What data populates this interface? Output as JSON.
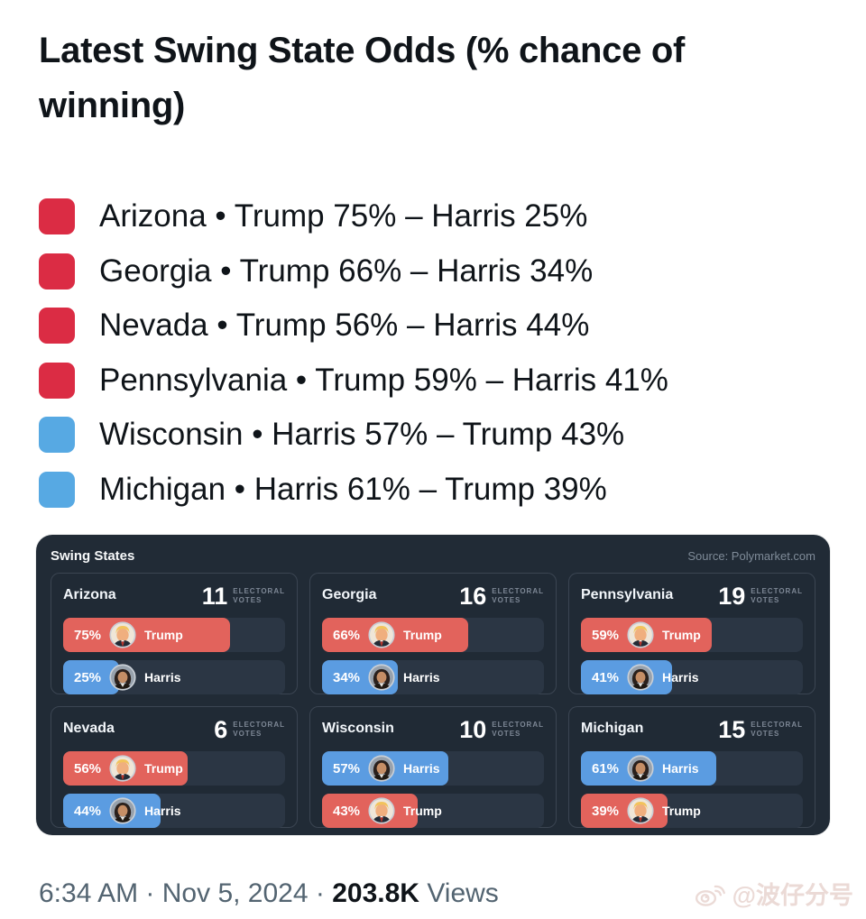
{
  "post": {
    "title": "Latest Swing State Odds (% chance of winning)",
    "legend": [
      {
        "marker": "red-square",
        "marker_color": "#DB2C44",
        "text": "Arizona • Trump 75% – Harris 25%"
      },
      {
        "marker": "red-square",
        "marker_color": "#DB2C44",
        "text": "Georgia • Trump 66% – Harris 34%"
      },
      {
        "marker": "red-square",
        "marker_color": "#DB2C44",
        "text": "Nevada • Trump 56% – Harris 44%"
      },
      {
        "marker": "red-square",
        "marker_color": "#DB2C44",
        "text": "Pennsylvania • Trump 59% – Harris 41%"
      },
      {
        "marker": "blue-square",
        "marker_color": "#57A9E3",
        "text": "Wisconsin • Harris 57% – Trump 43%"
      },
      {
        "marker": "blue-square",
        "marker_color": "#57A9E3",
        "text": "Michigan • Harris 61% – Trump 39%"
      }
    ]
  },
  "card": {
    "title": "Swing States",
    "source": "Source: Polymarket.com",
    "ev_line1": "ELECTORAL",
    "ev_line2": "VOTES",
    "tiles": [
      {
        "state": "Arizona",
        "ev": "11",
        "bars": [
          {
            "pct": 75,
            "pct_label": "75%",
            "name": "Trump",
            "icon": "trump-avatar",
            "color": "#E2635C"
          },
          {
            "pct": 25,
            "pct_label": "25%",
            "name": "Harris",
            "icon": "harris-avatar",
            "color": "#5B9CE1"
          }
        ]
      },
      {
        "state": "Georgia",
        "ev": "16",
        "bars": [
          {
            "pct": 66,
            "pct_label": "66%",
            "name": "Trump",
            "icon": "trump-avatar",
            "color": "#E2635C"
          },
          {
            "pct": 34,
            "pct_label": "34%",
            "name": "Harris",
            "icon": "harris-avatar",
            "color": "#5B9CE1"
          }
        ]
      },
      {
        "state": "Pennsylvania",
        "ev": "19",
        "bars": [
          {
            "pct": 59,
            "pct_label": "59%",
            "name": "Trump",
            "icon": "trump-avatar",
            "color": "#E2635C"
          },
          {
            "pct": 41,
            "pct_label": "41%",
            "name": "Harris",
            "icon": "harris-avatar",
            "color": "#5B9CE1"
          }
        ]
      },
      {
        "state": "Nevada",
        "ev": "6",
        "bars": [
          {
            "pct": 56,
            "pct_label": "56%",
            "name": "Trump",
            "icon": "trump-avatar",
            "color": "#E2635C"
          },
          {
            "pct": 44,
            "pct_label": "44%",
            "name": "Harris",
            "icon": "harris-avatar",
            "color": "#5B9CE1"
          }
        ]
      },
      {
        "state": "Wisconsin",
        "ev": "10",
        "bars": [
          {
            "pct": 57,
            "pct_label": "57%",
            "name": "Harris",
            "icon": "harris-avatar",
            "color": "#5B9CE1"
          },
          {
            "pct": 43,
            "pct_label": "43%",
            "name": "Trump",
            "icon": "trump-avatar",
            "color": "#E2635C"
          }
        ]
      },
      {
        "state": "Michigan",
        "ev": "15",
        "bars": [
          {
            "pct": 61,
            "pct_label": "61%",
            "name": "Harris",
            "icon": "harris-avatar",
            "color": "#5B9CE1"
          },
          {
            "pct": 39,
            "pct_label": "39%",
            "name": "Trump",
            "icon": "trump-avatar",
            "color": "#E2635C"
          }
        ]
      }
    ]
  },
  "footer": {
    "time": "6:34 AM",
    "separator": "·",
    "date": "Nov 5, 2024",
    "views_count": "203.8K",
    "views_label": "Views"
  },
  "watermark": {
    "icon": "weibo-logo",
    "handle": "@波仔分号"
  },
  "colors": {
    "trump_red": "#E2635C",
    "harris_blue": "#5B9CE1",
    "card_bg": "#212B36",
    "bar_track": "#2B3644",
    "text_dark": "#0f1419",
    "text_gray": "#536471"
  },
  "chart_data": {
    "type": "bar",
    "title": "Swing States",
    "subtitle": "Latest Swing State Odds (% chance of winning)",
    "source": "Polymarket.com",
    "categories": [
      "Arizona",
      "Georgia",
      "Pennsylvania",
      "Nevada",
      "Wisconsin",
      "Michigan"
    ],
    "electoral_votes": [
      11,
      16,
      19,
      6,
      10,
      15
    ],
    "series": [
      {
        "name": "Trump",
        "color": "#E2635C",
        "values": [
          75,
          66,
          59,
          56,
          43,
          39
        ]
      },
      {
        "name": "Harris",
        "color": "#5B9CE1",
        "values": [
          25,
          34,
          41,
          44,
          57,
          61
        ]
      }
    ],
    "xlabel": "",
    "ylabel": "% chance of winning",
    "ylim": [
      0,
      100
    ],
    "grid": false,
    "legend_position": "in-bar labels"
  }
}
